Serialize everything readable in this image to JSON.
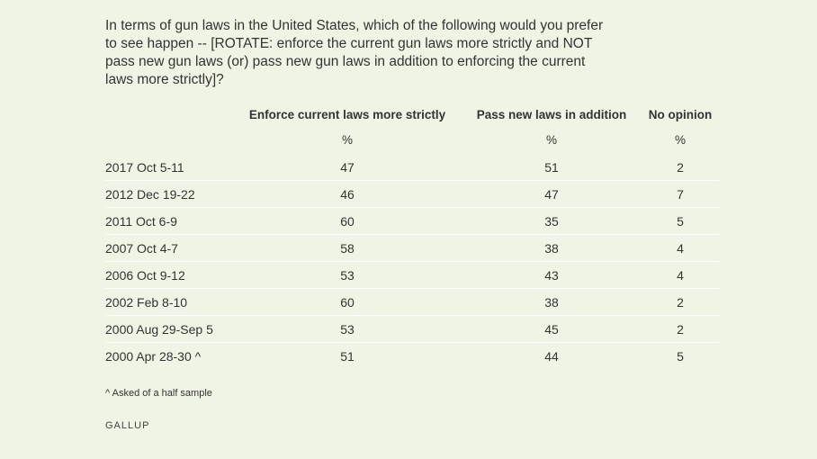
{
  "question": "In terms of gun laws in the United States, which of the following would you prefer to see happen -- [ROTATE: enforce the current gun laws more strictly and NOT pass new gun laws (or) pass new gun laws in addition to enforcing the current laws more strictly]?",
  "chart_data": {
    "type": "table",
    "columns": [
      "Enforce current laws more strictly",
      "Pass new laws in addition",
      "No opinion"
    ],
    "units": [
      "%",
      "%",
      "%"
    ],
    "rows": [
      {
        "label": "2017 Oct 5-11",
        "values": [
          "47",
          "51",
          "2"
        ]
      },
      {
        "label": "2012 Dec 19-22",
        "values": [
          "46",
          "47",
          "7"
        ]
      },
      {
        "label": "2011 Oct 6-9",
        "values": [
          "60",
          "35",
          "5"
        ]
      },
      {
        "label": "2007 Oct 4-7",
        "values": [
          "58",
          "38",
          "4"
        ]
      },
      {
        "label": "2006 Oct 9-12",
        "values": [
          "53",
          "43",
          "4"
        ]
      },
      {
        "label": "2002 Feb 8-10",
        "values": [
          "60",
          "38",
          "2"
        ]
      },
      {
        "label": "2000 Aug 29-Sep 5",
        "values": [
          "53",
          "45",
          "2"
        ]
      },
      {
        "label": "2000 Apr 28-30 ^",
        "values": [
          "51",
          "44",
          "5"
        ]
      }
    ]
  },
  "footnote": "^ Asked of a half sample",
  "brand": "GALLUP"
}
